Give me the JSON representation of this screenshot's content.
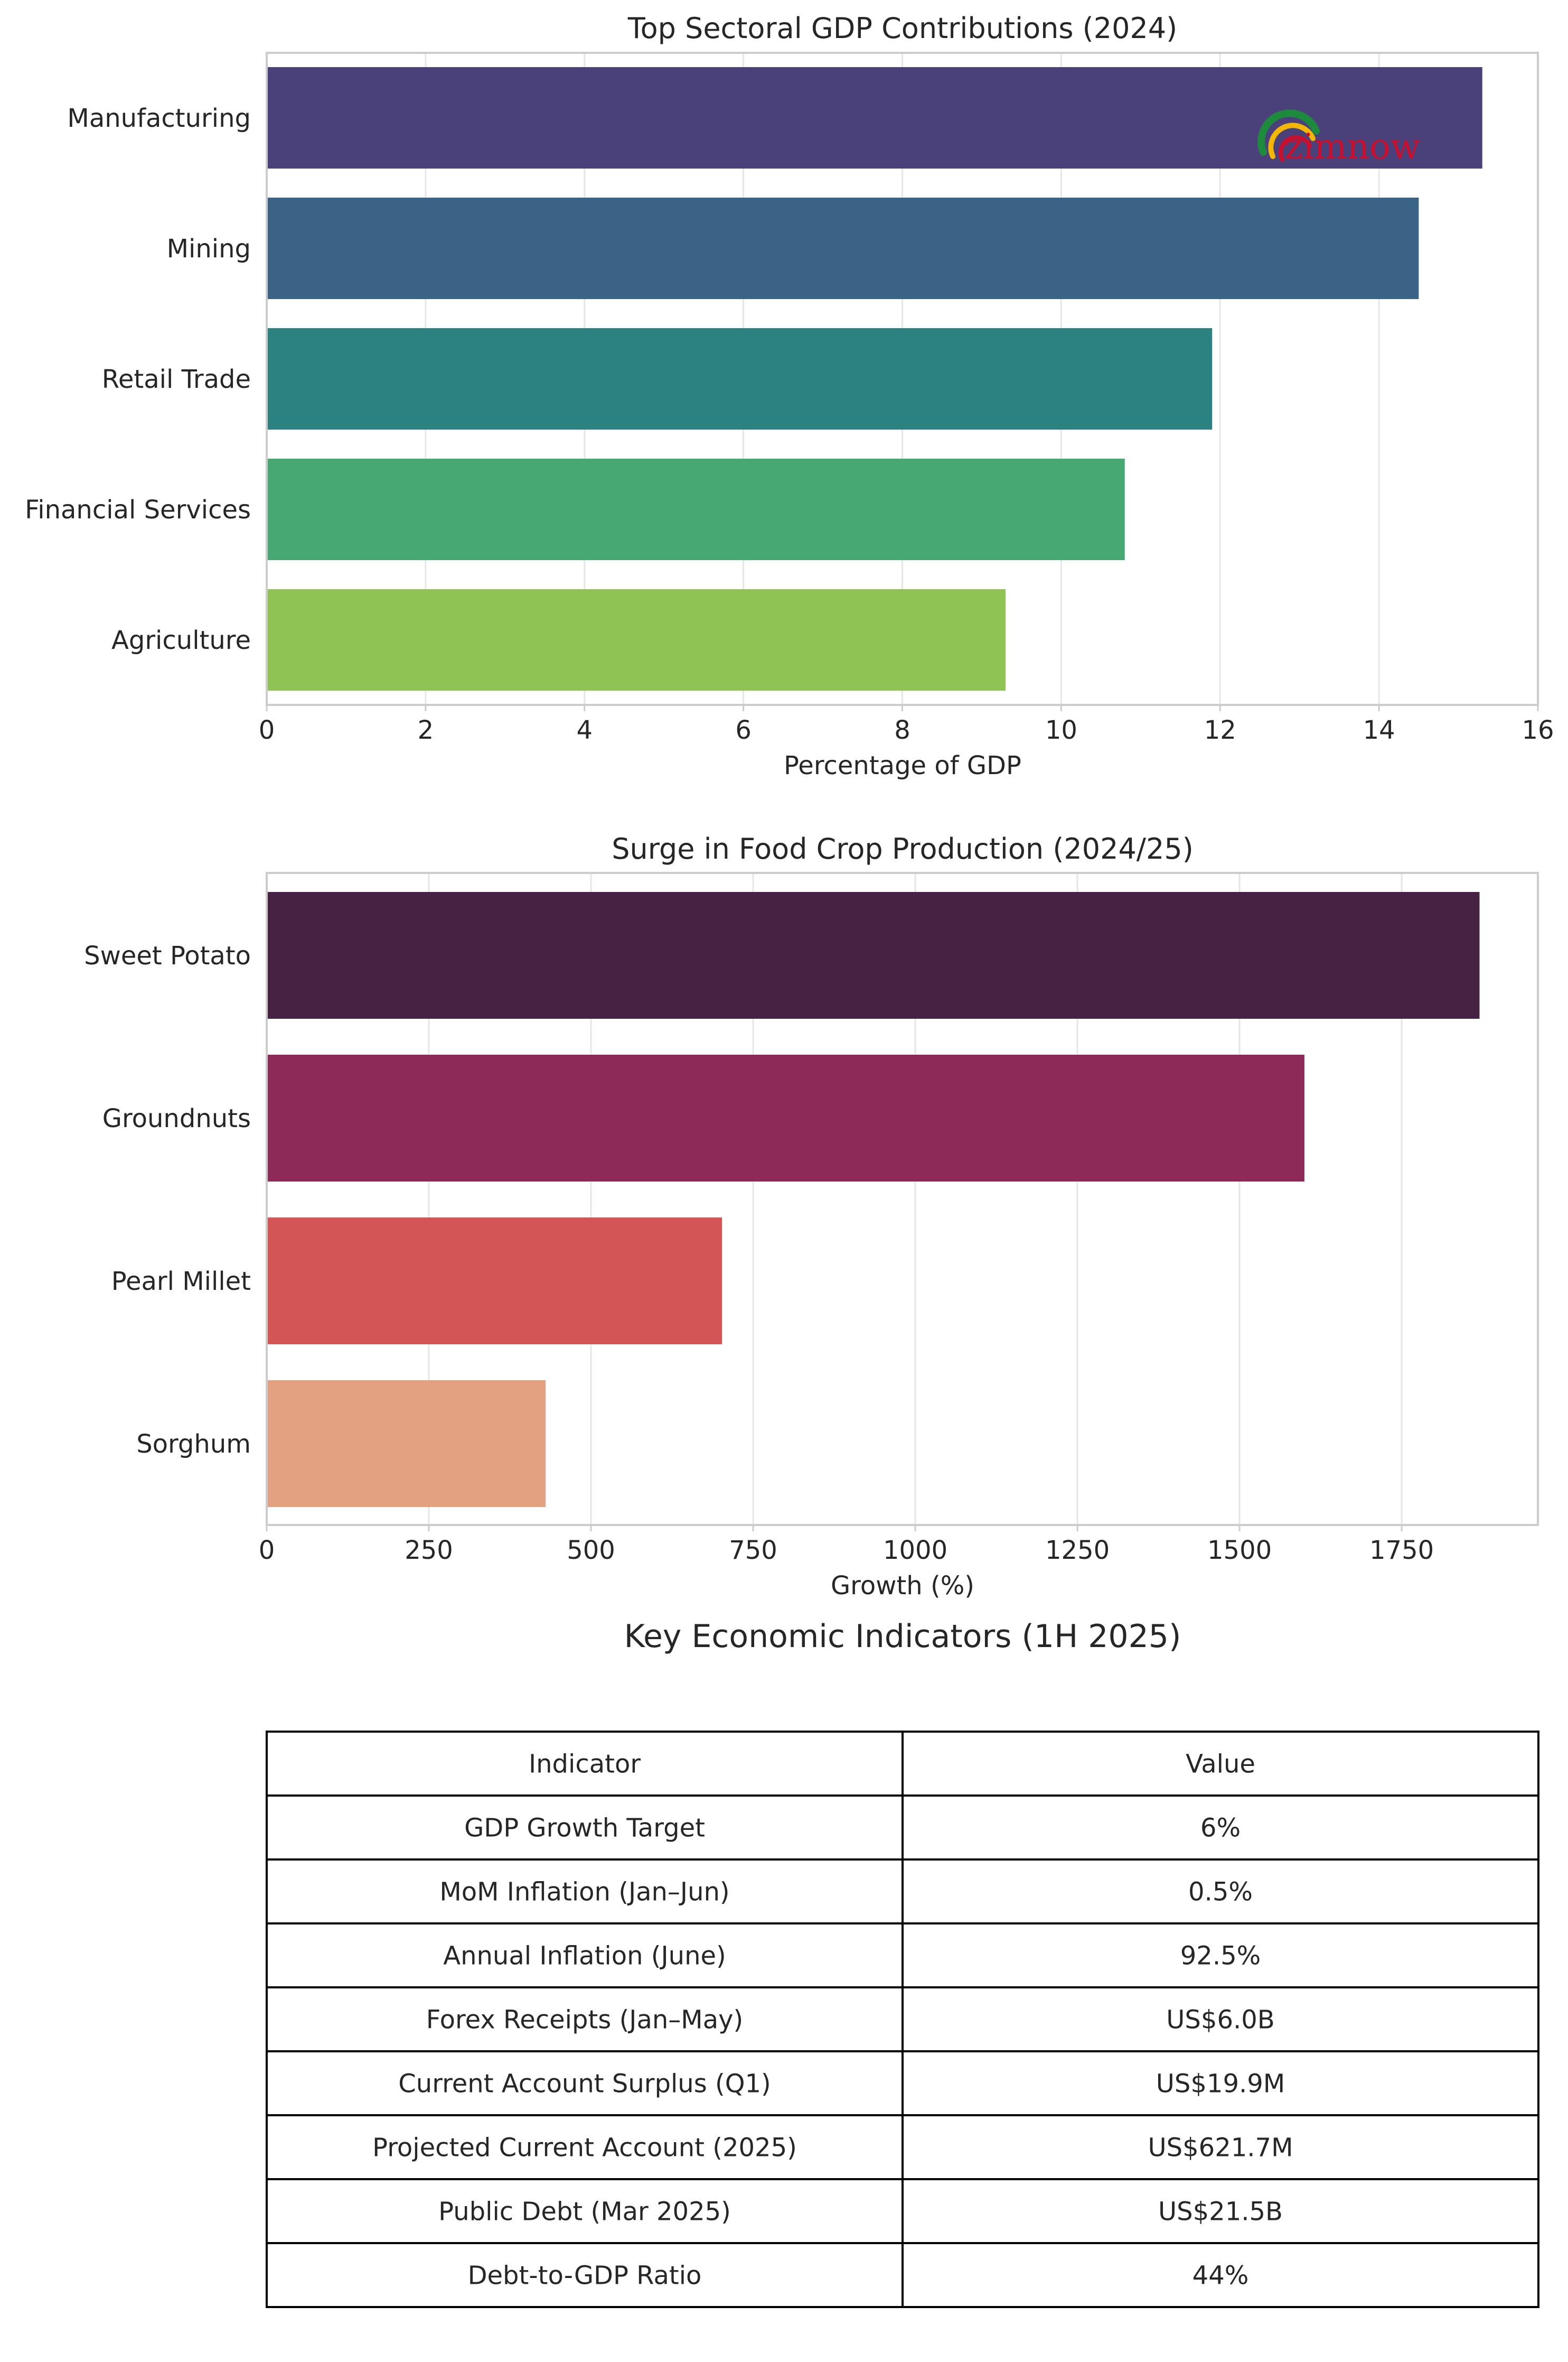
{
  "chart_data": [
    {
      "type": "bar",
      "orientation": "horizontal",
      "title": "Top Sectoral GDP Contributions (2024)",
      "xlabel": "Percentage of GDP",
      "ylabel": "",
      "categories": [
        "Manufacturing",
        "Mining",
        "Retail Trade",
        "Financial Services",
        "Agriculture"
      ],
      "values": [
        15.3,
        14.5,
        11.9,
        10.8,
        9.3
      ],
      "colors": [
        "#4b417a",
        "#3a6386",
        "#2c8281",
        "#47a874",
        "#8fc455"
      ],
      "xlim": [
        0,
        16
      ],
      "xticks": [
        0,
        2,
        4,
        6,
        8,
        10,
        12,
        14,
        16
      ],
      "grid": true,
      "logo": {
        "text": "zimnow",
        "colors": [
          "#1e8a3e",
          "#f2b705",
          "#c8102e"
        ]
      }
    },
    {
      "type": "bar",
      "orientation": "horizontal",
      "title": "Surge in Food Crop Production (2024/25)",
      "xlabel": "Growth (%)",
      "ylabel": "",
      "categories": [
        "Sweet Potato",
        "Groundnuts",
        "Pearl Millet",
        "Sorghum"
      ],
      "values": [
        1870,
        1600,
        702,
        430
      ],
      "colors": [
        "#472242",
        "#8d2a58",
        "#d45555",
        "#e4a181"
      ],
      "xlim": [
        0,
        1960
      ],
      "xticks": [
        0,
        250,
        500,
        750,
        1000,
        1250,
        1500,
        1750
      ],
      "grid": true
    },
    {
      "type": "table",
      "title": "Key Economic Indicators (1H 2025)",
      "columns": [
        "Indicator",
        "Value"
      ],
      "rows": [
        [
          "GDP Growth Target",
          "6%"
        ],
        [
          "MoM Inflation (Jan–Jun)",
          "0.5%"
        ],
        [
          "Annual Inflation (June)",
          "92.5%"
        ],
        [
          "Forex Receipts (Jan–May)",
          "US$6.0B"
        ],
        [
          "Current Account Surplus (Q1)",
          "US$19.9M"
        ],
        [
          "Projected Current Account (2025)",
          "US$621.7M"
        ],
        [
          "Public Debt (Mar 2025)",
          "US$21.5B"
        ],
        [
          "Debt-to-GDP Ratio",
          "44%"
        ]
      ]
    }
  ]
}
